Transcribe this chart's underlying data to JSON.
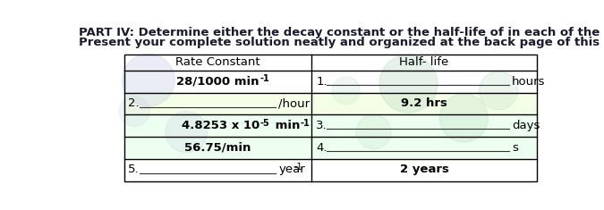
{
  "title_line1": "PART IV: Determine either the decay constant or the half-life of in each of the following.",
  "title_line2": "Present your complete solution neatly and organized at the back page of this paper.",
  "col1_header": "Rate Constant",
  "col2_header": "Half- life",
  "rows": [
    {
      "left_number": "",
      "left_content": "28/1000 min",
      "left_sup": "-1",
      "left_has_blank": false,
      "left_unit": "",
      "left_unit_sup": "",
      "right_number": "1.",
      "right_content": "",
      "right_has_blank": true,
      "right_unit": "hours",
      "right_unit_sup": "",
      "bg": "#ffffff",
      "bold_left": true,
      "bold_right": false
    },
    {
      "left_number": "2.",
      "left_content": "",
      "left_sup": "",
      "left_has_blank": true,
      "left_unit": "/hour",
      "left_unit_sup": "",
      "right_number": "",
      "right_content": "9.2 hrs",
      "right_has_blank": false,
      "right_unit": "",
      "right_unit_sup": "",
      "bg": "#f5ffe8",
      "bold_left": false,
      "bold_right": true
    },
    {
      "left_number": "",
      "left_content": "4.8253 x 10",
      "left_sup": "-5",
      "left_has_blank": false,
      "left_unit": " min",
      "left_unit_sup": "-1",
      "right_number": "3.",
      "right_content": "",
      "right_has_blank": true,
      "right_unit": "days",
      "right_unit_sup": "",
      "bg": "#edfff0",
      "bold_left": true,
      "bold_right": false
    },
    {
      "left_number": "",
      "left_content": "56.75/min",
      "left_sup": "",
      "left_has_blank": false,
      "left_unit": "",
      "left_unit_sup": "",
      "right_number": "4.",
      "right_content": "",
      "right_has_blank": true,
      "right_unit": "s",
      "right_unit_sup": "",
      "bg": "#edfff0",
      "bold_left": true,
      "bold_right": false
    },
    {
      "left_number": "5.",
      "left_content": "",
      "left_sup": "",
      "left_has_blank": true,
      "left_unit": "year",
      "left_unit_sup": "-1",
      "right_number": "",
      "right_content": "2 years",
      "right_has_blank": false,
      "right_unit": "",
      "right_unit_sup": "",
      "bg": "#ffffff",
      "bold_left": false,
      "bold_right": true
    }
  ],
  "font_color": "#000000",
  "header_bg": "#ffffff",
  "table_border_color": "#000000",
  "watermark_color_left": "#c8cce8",
  "watermark_color_right": "#b8d8c0",
  "title_fontsize": 9.5,
  "header_fontsize": 9.5,
  "cell_fontsize": 9.5,
  "sup_fontsize": 7.0
}
